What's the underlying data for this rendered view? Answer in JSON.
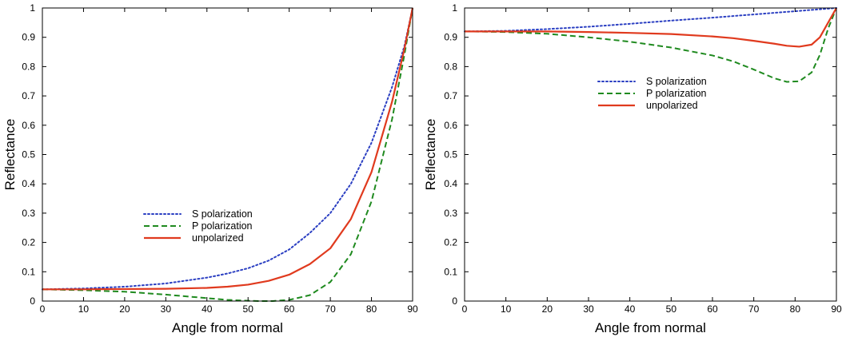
{
  "chart_data": [
    {
      "type": "line",
      "title": "",
      "xlabel": "Angle from normal",
      "ylabel": "Reflectance",
      "xlim": [
        0,
        90
      ],
      "ylim": [
        0,
        1
      ],
      "xticks": [
        "0",
        "10",
        "20",
        "30",
        "40",
        "50",
        "60",
        "70",
        "80",
        "90"
      ],
      "yticks": [
        "0",
        "0.1",
        "0.2",
        "0.3",
        "0.4",
        "0.5",
        "0.6",
        "0.7",
        "0.8",
        "0.9",
        "1"
      ],
      "grid": false,
      "legend_position": "lower-center",
      "series": [
        {
          "name": "S polarization",
          "color": "#2b3fc2",
          "style": "dotted",
          "x": [
            0,
            10,
            20,
            30,
            40,
            45,
            50,
            55,
            60,
            65,
            70,
            75,
            80,
            85,
            88,
            90
          ],
          "y": [
            0.04,
            0.043,
            0.049,
            0.06,
            0.08,
            0.094,
            0.112,
            0.138,
            0.176,
            0.232,
            0.3,
            0.4,
            0.54,
            0.73,
            0.87,
            1.0
          ]
        },
        {
          "name": "P polarization",
          "color": "#1f8a1f",
          "style": "dashed",
          "x": [
            0,
            10,
            20,
            30,
            40,
            45,
            50,
            53,
            56,
            60,
            65,
            70,
            75,
            80,
            85,
            88,
            90
          ],
          "y": [
            0.04,
            0.037,
            0.032,
            0.022,
            0.01,
            0.004,
            0.001,
            0.0,
            0.0,
            0.004,
            0.02,
            0.065,
            0.16,
            0.34,
            0.62,
            0.84,
            1.0
          ]
        },
        {
          "name": "unpolarized",
          "color": "#e03a1e",
          "style": "solid",
          "x": [
            0,
            10,
            20,
            30,
            40,
            45,
            50,
            55,
            60,
            65,
            70,
            75,
            80,
            85,
            88,
            90
          ],
          "y": [
            0.04,
            0.04,
            0.041,
            0.042,
            0.045,
            0.049,
            0.056,
            0.069,
            0.09,
            0.126,
            0.18,
            0.28,
            0.44,
            0.68,
            0.86,
            1.0
          ]
        }
      ]
    },
    {
      "type": "line",
      "title": "",
      "xlabel": "Angle from normal",
      "ylabel": "Reflectance",
      "xlim": [
        0,
        90
      ],
      "ylim": [
        0,
        1
      ],
      "xticks": [
        "0",
        "10",
        "20",
        "30",
        "40",
        "50",
        "60",
        "70",
        "80",
        "90"
      ],
      "yticks": [
        "0",
        "0.1",
        "0.2",
        "0.3",
        "0.4",
        "0.5",
        "0.6",
        "0.7",
        "0.8",
        "0.9",
        "1"
      ],
      "grid": false,
      "legend_position": "upper-center",
      "series": [
        {
          "name": "S polarization",
          "color": "#2b3fc2",
          "style": "dotted",
          "x": [
            0,
            10,
            20,
            30,
            40,
            50,
            60,
            70,
            80,
            90
          ],
          "y": [
            0.92,
            0.922,
            0.928,
            0.936,
            0.946,
            0.957,
            0.967,
            0.978,
            0.989,
            1.0
          ]
        },
        {
          "name": "P polarization",
          "color": "#1f8a1f",
          "style": "dashed",
          "x": [
            0,
            10,
            20,
            30,
            40,
            50,
            60,
            65,
            70,
            75,
            78,
            81,
            84,
            86,
            88,
            90
          ],
          "y": [
            0.92,
            0.918,
            0.912,
            0.9,
            0.885,
            0.865,
            0.838,
            0.818,
            0.79,
            0.76,
            0.748,
            0.75,
            0.78,
            0.84,
            0.93,
            1.0
          ]
        },
        {
          "name": "unpolarized",
          "color": "#e03a1e",
          "style": "solid",
          "x": [
            0,
            10,
            20,
            30,
            40,
            50,
            60,
            65,
            70,
            75,
            78,
            81,
            84,
            86,
            88,
            90
          ],
          "y": [
            0.92,
            0.92,
            0.92,
            0.918,
            0.915,
            0.911,
            0.903,
            0.897,
            0.888,
            0.878,
            0.871,
            0.868,
            0.875,
            0.9,
            0.95,
            1.0
          ]
        }
      ]
    }
  ]
}
